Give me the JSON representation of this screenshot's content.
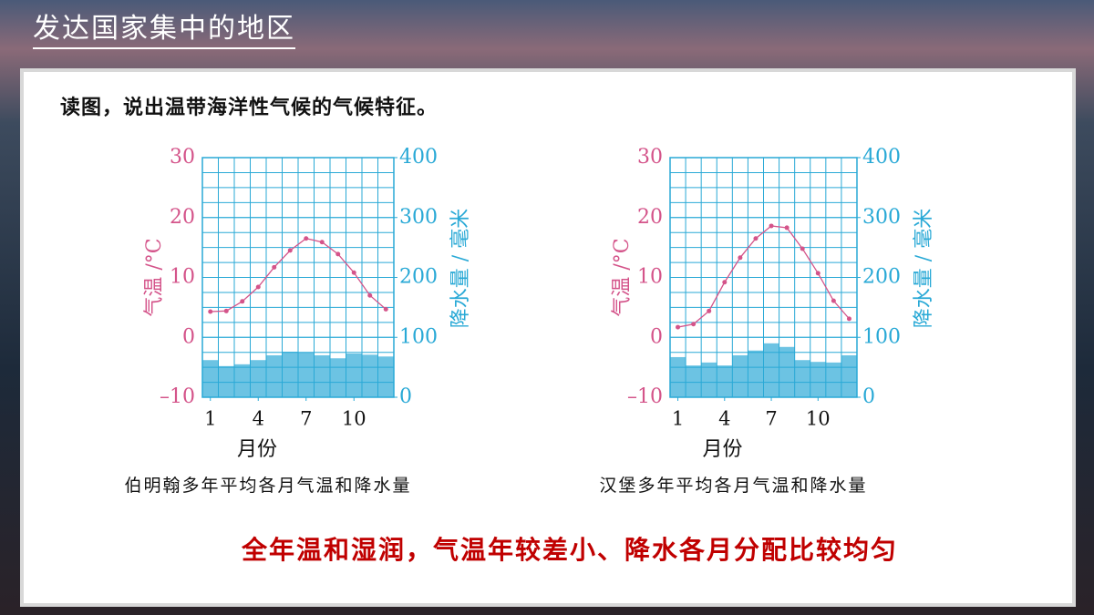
{
  "header": {
    "title": "发达国家集中的地区"
  },
  "question": "读图，说出温带海洋性气候的气候特征。",
  "answer": "全年温和湿润，气温年较差小、降水各月分配比较均匀",
  "chart_data": [
    {
      "type": "climate",
      "title": "伯明翰多年平均各月气温和降水量",
      "x_label": "月份",
      "y_label": "气温 /°C",
      "y2_label": "降水量 / 毫米",
      "x": [
        1,
        2,
        3,
        4,
        5,
        6,
        7,
        8,
        9,
        10,
        11,
        12
      ],
      "xlim": [
        0.5,
        12.5
      ],
      "xticks": [
        1,
        4,
        7,
        10
      ],
      "ylim": [
        -10,
        30
      ],
      "yticks": [
        {
          "value": -10,
          "label": "–10"
        },
        0,
        10,
        20,
        30
      ],
      "y2lim": [
        0,
        400
      ],
      "y2ticks": [
        0,
        100,
        200,
        300,
        400
      ],
      "series": [
        {
          "name": "气温",
          "color": "#d4548a",
          "values": [
            4.3,
            4.4,
            6.0,
            8.4,
            11.7,
            14.5,
            16.5,
            15.9,
            13.9,
            10.8,
            7.0,
            4.7
          ]
        },
        {
          "name": "降水量",
          "color": "#6cc3e3",
          "axis": "y2",
          "values": [
            62,
            52,
            55,
            62,
            70,
            76,
            75,
            70,
            65,
            73,
            71,
            68
          ]
        }
      ]
    },
    {
      "type": "climate",
      "title": "汉堡多年平均各月气温和降水量",
      "x_label": "月份",
      "y_label": "气温 /°C",
      "y2_label": "降水量 / 毫米",
      "x": [
        1,
        2,
        3,
        4,
        5,
        6,
        7,
        8,
        9,
        10,
        11,
        12
      ],
      "xlim": [
        0.5,
        12.5
      ],
      "xticks": [
        1,
        4,
        7,
        10
      ],
      "ylim": [
        -10,
        30
      ],
      "yticks": [
        {
          "value": -10,
          "label": "–10"
        },
        0,
        10,
        20,
        30
      ],
      "y2lim": [
        0,
        400
      ],
      "y2ticks": [
        0,
        100,
        200,
        300,
        400
      ],
      "series": [
        {
          "name": "气温",
          "color": "#d4548a",
          "values": [
            1.7,
            2.2,
            4.4,
            9.2,
            13.3,
            16.5,
            18.6,
            18.3,
            14.8,
            10.7,
            6.1,
            3.1
          ]
        },
        {
          "name": "降水量",
          "color": "#6cc3e3",
          "axis": "y2",
          "values": [
            67,
            53,
            58,
            53,
            70,
            78,
            90,
            84,
            62,
            59,
            58,
            70
          ]
        }
      ]
    }
  ]
}
